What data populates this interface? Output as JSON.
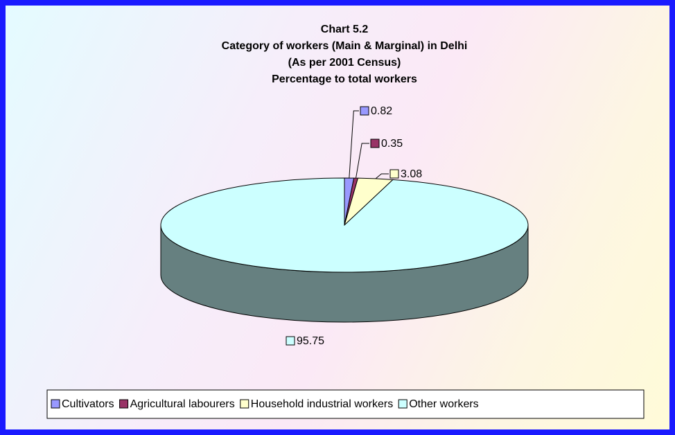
{
  "chart_data": {
    "type": "pie3d",
    "title": [
      "Chart 5.2",
      "Category of workers (Main & Marginal) in Delhi",
      "(As per 2001 Census)",
      "Percentage to total workers"
    ],
    "categories": [
      "Cultivators",
      "Agricultural labourers",
      "Household industrial workers",
      "Other workers"
    ],
    "values": [
      0.82,
      0.35,
      3.08,
      95.75
    ],
    "colors": [
      "#9999ff",
      "#993366",
      "#ffffcc",
      "#ccffff"
    ],
    "legend": "bottom"
  }
}
